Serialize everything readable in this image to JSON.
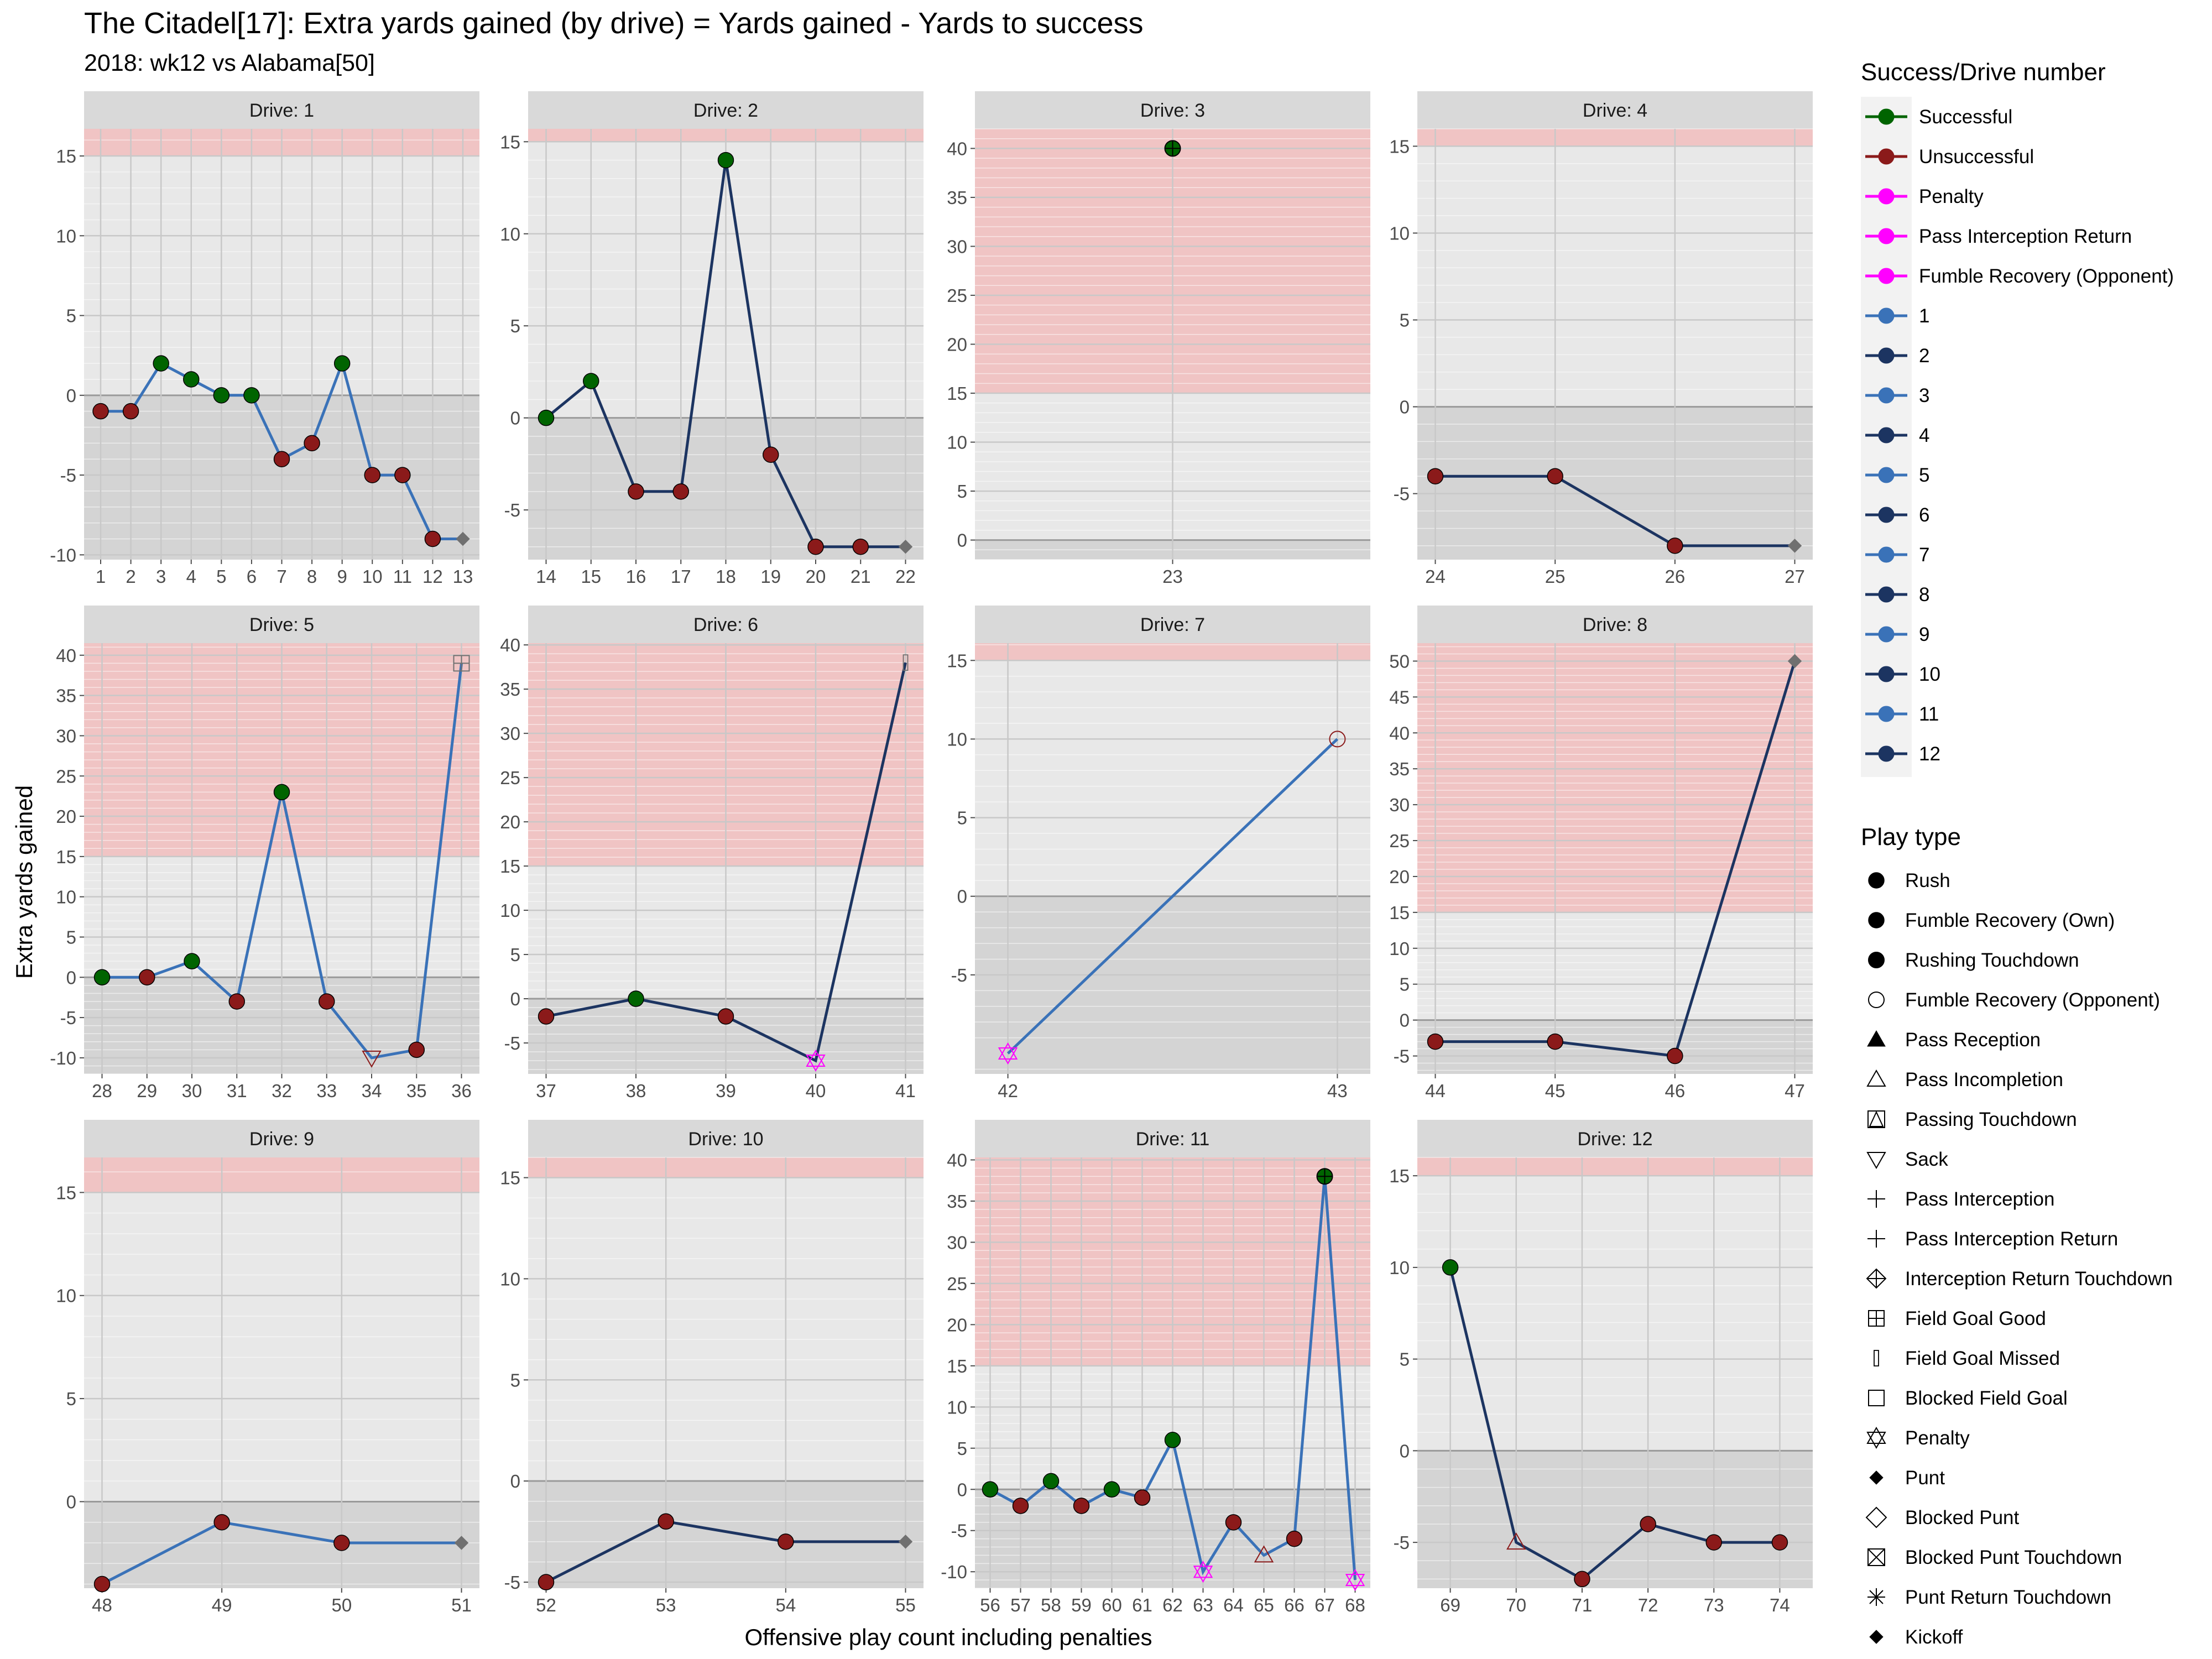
{
  "title": "The Citadel[17]: Extra yards gained (by drive) = Yards gained - Yards to success",
  "subtitle": "2018: wk12 vs Alabama[50]",
  "chart_data": {
    "type": "line",
    "facet_prefix": "Drive: ",
    "xlabel": "Offensive play count including penalties",
    "ylabel": "Extra yards gained",
    "colors": {
      "successful": "#006400",
      "unsuccessful": "#8B1A1A",
      "penalty": "#FF00FF",
      "odd_drive": "#3a72b8",
      "even_drive": "#1c3461",
      "end_marker": "#707070",
      "success_zone": "#f0c4c4",
      "panel_upper": "#e8e8e8",
      "panel_lower": "#d4d4d4"
    },
    "panels": [
      {
        "drive": 1,
        "xlim": [
          0.45,
          13.55
        ],
        "ylim": [
          -10.3,
          16.7
        ],
        "xticks": [
          1,
          2,
          3,
          4,
          5,
          6,
          7,
          8,
          9,
          10,
          11,
          12,
          13
        ],
        "yticks": [
          -10,
          -5,
          0,
          5,
          10,
          15
        ],
        "zone": 15,
        "points": [
          {
            "x": 1,
            "y": -1,
            "r": "unsuccessful",
            "shape": "rush"
          },
          {
            "x": 2,
            "y": -1,
            "r": "unsuccessful",
            "shape": "rush"
          },
          {
            "x": 3,
            "y": 2,
            "r": "successful",
            "shape": "rush"
          },
          {
            "x": 4,
            "y": 1,
            "r": "successful",
            "shape": "rush"
          },
          {
            "x": 5,
            "y": 0,
            "r": "successful",
            "shape": "rush"
          },
          {
            "x": 6,
            "y": 0,
            "r": "successful",
            "shape": "rush"
          },
          {
            "x": 7,
            "y": -4,
            "r": "unsuccessful",
            "shape": "rush"
          },
          {
            "x": 8,
            "y": -3,
            "r": "unsuccessful",
            "shape": "rush"
          },
          {
            "x": 9,
            "y": 2,
            "r": "successful",
            "shape": "rush"
          },
          {
            "x": 10,
            "y": -5,
            "r": "unsuccessful",
            "shape": "rush"
          },
          {
            "x": 11,
            "y": -5,
            "r": "unsuccessful",
            "shape": "rush"
          },
          {
            "x": 12,
            "y": -9,
            "r": "unsuccessful",
            "shape": "rush"
          },
          {
            "x": 13,
            "y": -9,
            "r": "end",
            "shape": "punt"
          }
        ]
      },
      {
        "drive": 2,
        "xlim": [
          13.6,
          22.4
        ],
        "ylim": [
          -7.7,
          15.7
        ],
        "xticks": [
          14,
          15,
          16,
          17,
          18,
          19,
          20,
          21,
          22
        ],
        "yticks": [
          -5,
          0,
          5,
          10,
          15
        ],
        "zone": 15,
        "points": [
          {
            "x": 14,
            "y": 0,
            "r": "successful",
            "shape": "rush"
          },
          {
            "x": 15,
            "y": 2,
            "r": "successful",
            "shape": "rush"
          },
          {
            "x": 16,
            "y": -4,
            "r": "unsuccessful",
            "shape": "rush"
          },
          {
            "x": 17,
            "y": -4,
            "r": "unsuccessful",
            "shape": "rush"
          },
          {
            "x": 18,
            "y": 14,
            "r": "successful",
            "shape": "rush"
          },
          {
            "x": 19,
            "y": -2,
            "r": "unsuccessful",
            "shape": "rush"
          },
          {
            "x": 20,
            "y": -7,
            "r": "unsuccessful",
            "shape": "rush"
          },
          {
            "x": 21,
            "y": -7,
            "r": "unsuccessful",
            "shape": "rush"
          },
          {
            "x": 22,
            "y": -7,
            "r": "end",
            "shape": "punt"
          }
        ]
      },
      {
        "drive": 3,
        "xlim": [
          22.45,
          23.55
        ],
        "ylim": [
          -2.0,
          42.0
        ],
        "xticks": [
          23
        ],
        "yticks": [
          0,
          5,
          10,
          15,
          20,
          25,
          30,
          35,
          40
        ],
        "zone": 15,
        "points": [
          {
            "x": 23,
            "y": 40,
            "r": "successful",
            "shape": "rushing-td"
          }
        ]
      },
      {
        "drive": 4,
        "xlim": [
          23.85,
          27.15
        ],
        "ylim": [
          -8.8,
          16.0
        ],
        "xticks": [
          24,
          25,
          26,
          27
        ],
        "yticks": [
          -5,
          0,
          5,
          10,
          15
        ],
        "zone": 15,
        "points": [
          {
            "x": 24,
            "y": -4,
            "r": "unsuccessful",
            "shape": "rush"
          },
          {
            "x": 25,
            "y": -4,
            "r": "unsuccessful",
            "shape": "rush"
          },
          {
            "x": 26,
            "y": -8,
            "r": "unsuccessful",
            "shape": "rush"
          },
          {
            "x": 27,
            "y": -8,
            "r": "end",
            "shape": "punt"
          }
        ]
      },
      {
        "drive": 5,
        "xlim": [
          27.6,
          36.4
        ],
        "ylim": [
          -12.0,
          41.5
        ],
        "xticks": [
          28,
          29,
          30,
          31,
          32,
          33,
          34,
          35,
          36
        ],
        "yticks": [
          -10,
          -5,
          0,
          5,
          10,
          15,
          20,
          25,
          30,
          35,
          40
        ],
        "zone": 15,
        "points": [
          {
            "x": 28,
            "y": 0,
            "r": "successful",
            "shape": "rush"
          },
          {
            "x": 29,
            "y": 0,
            "r": "unsuccessful",
            "shape": "rush"
          },
          {
            "x": 30,
            "y": 2,
            "r": "successful",
            "shape": "rush"
          },
          {
            "x": 31,
            "y": -3,
            "r": "unsuccessful",
            "shape": "rush"
          },
          {
            "x": 32,
            "y": 23,
            "r": "successful",
            "shape": "rush"
          },
          {
            "x": 33,
            "y": -3,
            "r": "unsuccessful",
            "shape": "rush"
          },
          {
            "x": 34,
            "y": -10,
            "r": "unsuccessful",
            "shape": "sack"
          },
          {
            "x": 35,
            "y": -9,
            "r": "unsuccessful",
            "shape": "rush"
          },
          {
            "x": 36,
            "y": 39,
            "r": "end",
            "shape": "field-goal-good"
          }
        ]
      },
      {
        "drive": 6,
        "xlim": [
          36.8,
          41.2
        ],
        "ylim": [
          -8.5,
          40.2
        ],
        "xticks": [
          37,
          38,
          39,
          40,
          41
        ],
        "yticks": [
          -5,
          0,
          5,
          10,
          15,
          20,
          25,
          30,
          35,
          40
        ],
        "zone": 15,
        "points": [
          {
            "x": 37,
            "y": -2,
            "r": "unsuccessful",
            "shape": "rush"
          },
          {
            "x": 38,
            "y": 0,
            "r": "successful",
            "shape": "rush"
          },
          {
            "x": 39,
            "y": -2,
            "r": "unsuccessful",
            "shape": "rush"
          },
          {
            "x": 40,
            "y": -7,
            "r": "penalty",
            "shape": "penalty"
          },
          {
            "x": 41,
            "y": 38,
            "r": "end",
            "shape": "field-goal-missed"
          }
        ]
      },
      {
        "drive": 7,
        "xlim": [
          41.9,
          43.1
        ],
        "ylim": [
          -11.3,
          16.1
        ],
        "xticks": [
          42,
          43
        ],
        "yticks": [
          -5,
          0,
          5,
          10,
          15
        ],
        "zone": 15,
        "points": [
          {
            "x": 42,
            "y": -10,
            "r": "penalty",
            "shape": "penalty"
          },
          {
            "x": 43,
            "y": 10,
            "r": "unsuccessful",
            "shape": "fumble-recovery-opp"
          }
        ]
      },
      {
        "drive": 8,
        "xlim": [
          43.85,
          47.15
        ],
        "ylim": [
          -7.5,
          52.5
        ],
        "xticks": [
          44,
          45,
          46,
          47
        ],
        "yticks": [
          -5,
          0,
          5,
          10,
          15,
          20,
          25,
          30,
          35,
          40,
          45,
          50
        ],
        "zone": 15,
        "points": [
          {
            "x": 44,
            "y": -3,
            "r": "unsuccessful",
            "shape": "rush"
          },
          {
            "x": 45,
            "y": -3,
            "r": "unsuccessful",
            "shape": "rush"
          },
          {
            "x": 46,
            "y": -5,
            "r": "unsuccessful",
            "shape": "rush"
          },
          {
            "x": 47,
            "y": 50,
            "r": "end",
            "shape": "punt"
          }
        ]
      },
      {
        "drive": 9,
        "xlim": [
          47.85,
          51.15
        ],
        "ylim": [
          -4.2,
          16.7
        ],
        "xticks": [
          48,
          49,
          50,
          51
        ],
        "yticks": [
          0,
          5,
          10,
          15
        ],
        "zone": 15,
        "points": [
          {
            "x": 48,
            "y": -4,
            "r": "unsuccessful",
            "shape": "rush"
          },
          {
            "x": 49,
            "y": -1,
            "r": "unsuccessful",
            "shape": "rush"
          },
          {
            "x": 50,
            "y": -2,
            "r": "unsuccessful",
            "shape": "rush"
          },
          {
            "x": 51,
            "y": -2,
            "r": "end",
            "shape": "punt"
          }
        ]
      },
      {
        "drive": 10,
        "xlim": [
          51.85,
          55.15
        ],
        "ylim": [
          -5.3,
          16.0
        ],
        "xticks": [
          52,
          53,
          54,
          55
        ],
        "yticks": [
          -5,
          0,
          5,
          10,
          15
        ],
        "zone": 15,
        "points": [
          {
            "x": 52,
            "y": -5,
            "r": "unsuccessful",
            "shape": "rush"
          },
          {
            "x": 53,
            "y": -2,
            "r": "unsuccessful",
            "shape": "rush"
          },
          {
            "x": 54,
            "y": -3,
            "r": "unsuccessful",
            "shape": "rush"
          },
          {
            "x": 55,
            "y": -3,
            "r": "end",
            "shape": "punt"
          }
        ]
      },
      {
        "drive": 11,
        "xlim": [
          55.5,
          68.5
        ],
        "ylim": [
          -12.0,
          40.3
        ],
        "xticks": [
          56,
          57,
          58,
          59,
          60,
          61,
          62,
          63,
          64,
          65,
          66,
          67,
          68
        ],
        "yticks": [
          -10,
          -5,
          0,
          5,
          10,
          15,
          20,
          25,
          30,
          35,
          40
        ],
        "zone": 15,
        "points": [
          {
            "x": 56,
            "y": 0,
            "r": "successful",
            "shape": "rush"
          },
          {
            "x": 57,
            "y": -2,
            "r": "unsuccessful",
            "shape": "rush"
          },
          {
            "x": 58,
            "y": 1,
            "r": "successful",
            "shape": "rush"
          },
          {
            "x": 59,
            "y": -2,
            "r": "unsuccessful",
            "shape": "rush"
          },
          {
            "x": 60,
            "y": 0,
            "r": "successful",
            "shape": "rush"
          },
          {
            "x": 61,
            "y": -1,
            "r": "unsuccessful",
            "shape": "rush"
          },
          {
            "x": 62,
            "y": 6,
            "r": "successful",
            "shape": "rush"
          },
          {
            "x": 63,
            "y": -10,
            "r": "penalty",
            "shape": "penalty"
          },
          {
            "x": 64,
            "y": -4,
            "r": "unsuccessful",
            "shape": "rush"
          },
          {
            "x": 65,
            "y": -8,
            "r": "unsuccessful",
            "shape": "pass-incompletion"
          },
          {
            "x": 66,
            "y": -6,
            "r": "unsuccessful",
            "shape": "rush"
          },
          {
            "x": 67,
            "y": 38,
            "r": "successful",
            "shape": "rushing-td"
          },
          {
            "x": 68,
            "y": -11,
            "r": "penalty",
            "shape": "penalty"
          }
        ]
      },
      {
        "drive": 12,
        "xlim": [
          68.5,
          74.5
        ],
        "ylim": [
          -7.5,
          16.0
        ],
        "xticks": [
          69,
          70,
          71,
          72,
          73,
          74
        ],
        "yticks": [
          -5,
          0,
          5,
          10,
          15
        ],
        "zone": 15,
        "points": [
          {
            "x": 69,
            "y": 10,
            "r": "successful",
            "shape": "rush"
          },
          {
            "x": 70,
            "y": -5,
            "r": "unsuccessful",
            "shape": "pass-incompletion"
          },
          {
            "x": 71,
            "y": -7,
            "r": "unsuccessful",
            "shape": "rush"
          },
          {
            "x": 72,
            "y": -4,
            "r": "unsuccessful",
            "shape": "rush"
          },
          {
            "x": 73,
            "y": -5,
            "r": "unsuccessful",
            "shape": "rush"
          },
          {
            "x": 74,
            "y": -5,
            "r": "unsuccessful",
            "shape": "rush"
          }
        ]
      }
    ],
    "legend_success": {
      "title": "Success/Drive number",
      "items": [
        {
          "label": "Successful",
          "color": "#006400"
        },
        {
          "label": "Unsuccessful",
          "color": "#8B1A1A"
        },
        {
          "label": "Penalty",
          "color": "#FF00FF"
        },
        {
          "label": "Pass Interception Return",
          "color": "#FF00FF"
        },
        {
          "label": "Fumble Recovery (Opponent)",
          "color": "#FF00FF"
        },
        {
          "label": "1",
          "color": "#3a72b8"
        },
        {
          "label": "2",
          "color": "#1c3461"
        },
        {
          "label": "3",
          "color": "#3a72b8"
        },
        {
          "label": "4",
          "color": "#1c3461"
        },
        {
          "label": "5",
          "color": "#3a72b8"
        },
        {
          "label": "6",
          "color": "#1c3461"
        },
        {
          "label": "7",
          "color": "#3a72b8"
        },
        {
          "label": "8",
          "color": "#1c3461"
        },
        {
          "label": "9",
          "color": "#3a72b8"
        },
        {
          "label": "10",
          "color": "#1c3461"
        },
        {
          "label": "11",
          "color": "#3a72b8"
        },
        {
          "label": "12",
          "color": "#1c3461"
        }
      ]
    },
    "legend_playtype": {
      "title": "Play type",
      "items": [
        {
          "label": "Rush",
          "shape": "rush"
        },
        {
          "label": "Fumble Recovery (Own)",
          "shape": "rush"
        },
        {
          "label": "Rushing Touchdown",
          "shape": "rushing-td"
        },
        {
          "label": "Fumble Recovery (Opponent)",
          "shape": "fumble-recovery-opp"
        },
        {
          "label": "Pass Reception",
          "shape": "pass-reception"
        },
        {
          "label": "Pass Incompletion",
          "shape": "pass-incompletion"
        },
        {
          "label": "Passing Touchdown",
          "shape": "passing-td"
        },
        {
          "label": "Sack",
          "shape": "sack"
        },
        {
          "label": "Pass Interception",
          "shape": "plus"
        },
        {
          "label": "Pass Interception Return",
          "shape": "plus"
        },
        {
          "label": "Interception Return Touchdown",
          "shape": "diamond-plus"
        },
        {
          "label": "Field Goal Good",
          "shape": "field-goal-good"
        },
        {
          "label": "Field Goal Missed",
          "shape": "field-goal-missed"
        },
        {
          "label": "Blocked Field Goal",
          "shape": "square-open"
        },
        {
          "label": "Penalty",
          "shape": "penalty"
        },
        {
          "label": "Punt",
          "shape": "punt"
        },
        {
          "label": "Blocked Punt",
          "shape": "diamond-open"
        },
        {
          "label": "Blocked Punt Touchdown",
          "shape": "square-x"
        },
        {
          "label": "Punt Return Touchdown",
          "shape": "asterisk"
        },
        {
          "label": "Kickoff",
          "shape": "punt"
        }
      ]
    }
  }
}
